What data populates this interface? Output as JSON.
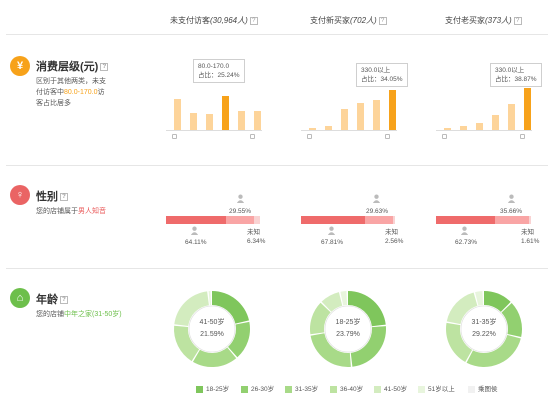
{
  "columns": [
    {
      "label": "未支付访客",
      "count": "(30,964人)"
    },
    {
      "label": "支付新买家",
      "count": "(702人)"
    },
    {
      "label": "支付老买家",
      "count": "(373人)"
    }
  ],
  "help_icon": "?",
  "consumption": {
    "icon": "¥",
    "icon_color": "#f7a21a",
    "title": "消费层级(元)",
    "desc_1": "区别于其他两类，未支付访客中",
    "desc_highlight": "80.0-170.0",
    "desc_2": "访客占比居多",
    "tooltips": [
      {
        "range": "80.0-170.0",
        "ratio": "占比：25.24%"
      },
      {
        "range": "330.0以上",
        "ratio": "占比：34.05%"
      },
      {
        "range": "330.0以上",
        "ratio": "占比：38.87%"
      }
    ],
    "bars": [
      [
        0.64,
        0.36,
        0.34,
        0.71,
        0.4,
        0.39
      ],
      [
        0.05,
        0.08,
        0.43,
        0.56,
        0.62,
        0.84
      ],
      [
        0.05,
        0.08,
        0.15,
        0.31,
        0.55,
        0.87
      ]
    ]
  },
  "gender": {
    "icon": "♀",
    "icon_color": "#ea6464",
    "title": "性别",
    "desc_1": "您的店铺属于",
    "desc_highlight": "男人知音",
    "desc_2": "",
    "columns": [
      {
        "male": "64.11%",
        "female": "29.55%",
        "unknown_label": "未知",
        "unknown": "6.34%",
        "male_pct": 64.11,
        "female_pct": 29.55,
        "unknown_pct": 6.34
      },
      {
        "male": "67.81%",
        "female": "29.63%",
        "unknown_label": "未知",
        "unknown": "2.56%",
        "male_pct": 67.81,
        "female_pct": 29.63,
        "unknown_pct": 2.56
      },
      {
        "male": "62.73%",
        "female": "35.66%",
        "unknown_label": "未知",
        "unknown": "1.61%",
        "male_pct": 62.73,
        "female_pct": 35.66,
        "unknown_pct": 1.61
      }
    ]
  },
  "age": {
    "icon": "⌂",
    "icon_color": "#6dbf4b",
    "title": "年龄",
    "desc_1": "您的店铺",
    "desc_highlight": "中年之家(31-50岁)",
    "desc_2": "",
    "donuts": [
      {
        "range": "41-50岁",
        "pct": "21.59%",
        "segments": [
          22,
          17,
          20,
          18,
          21.59,
          1.41
        ]
      },
      {
        "range": "18-25岁",
        "pct": "23.79%",
        "segments": [
          23.79,
          25,
          24,
          15,
          9,
          3.21
        ]
      },
      {
        "range": "31-35岁",
        "pct": "29.22%",
        "segments": [
          13,
          16,
          29.22,
          20,
          18,
          3.78
        ]
      }
    ],
    "legend": [
      {
        "label": "18-25岁",
        "color": "#7fc65c"
      },
      {
        "label": "26-30岁",
        "color": "#92d070"
      },
      {
        "label": "31-35岁",
        "color": "#a8da88"
      },
      {
        "label": "36-40岁",
        "color": "#bde3a1"
      },
      {
        "label": "41-50岁",
        "color": "#d3ecbf"
      },
      {
        "label": "51岁以上",
        "color": "#e8f5dd"
      },
      {
        "label": "乘图侯",
        "color": "#f1f1f1"
      }
    ]
  }
}
